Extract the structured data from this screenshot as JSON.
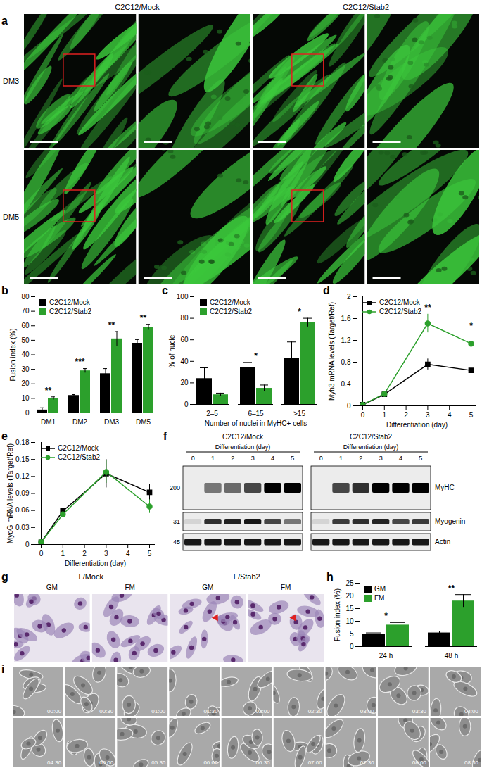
{
  "chart_data": [
    {
      "panel": "b",
      "type": "bar",
      "categories": [
        "DM1",
        "DM2",
        "DM3",
        "DM5"
      ],
      "y_label": "Fusion index (%)",
      "series": [
        {
          "name": "C2C12/Mock",
          "color": "#000000",
          "values": [
            2,
            12,
            27,
            48
          ],
          "errors": [
            1.5,
            0.6,
            3.5,
            2.5
          ]
        },
        {
          "name": "C2C12/Stab2",
          "color": "#2ca02c",
          "values": [
            10,
            29,
            51,
            59
          ],
          "errors": [
            1,
            1.5,
            5,
            2
          ]
        }
      ],
      "ylim": [
        0,
        80
      ],
      "yticks": [
        0,
        10,
        20,
        30,
        40,
        50,
        60,
        70,
        80
      ],
      "legend": "top-left",
      "annotations": [
        {
          "category": "DM1",
          "text": "**"
        },
        {
          "category": "DM2",
          "text": "***"
        },
        {
          "category": "DM3",
          "text": "**"
        },
        {
          "category": "DM5",
          "text": "**"
        }
      ]
    },
    {
      "panel": "c",
      "type": "bar",
      "categories": [
        "2–5",
        "6–15",
        ">15"
      ],
      "x_label": "Number of nuclei in MyHC+ cells",
      "y_label": "% of nuclei",
      "series": [
        {
          "name": "C2C12/Mock",
          "color": "#000000",
          "values": [
            24,
            34,
            43
          ],
          "errors": [
            10,
            5,
            15
          ]
        },
        {
          "name": "C2C12/Stab2",
          "color": "#2ca02c",
          "values": [
            9,
            15,
            76
          ],
          "errors": [
            1.5,
            3,
            4
          ]
        }
      ],
      "ylim": [
        0,
        100
      ],
      "yticks": [
        0,
        20,
        40,
        60,
        80,
        100
      ],
      "legend": "top-left",
      "annotations": [
        {
          "category": "6–15",
          "text": "*"
        },
        {
          "category": ">15",
          "text": "*"
        }
      ]
    },
    {
      "panel": "d",
      "type": "line",
      "x": [
        0,
        1,
        3,
        5
      ],
      "x_label": "Differentiation (day)",
      "y_label": "Myh3 mRNA levels (Target/Ref)",
      "series": [
        {
          "name": "C2C12/Mock",
          "color": "#000000",
          "marker": "square",
          "values": [
            0.02,
            0.21,
            0.76,
            0.65
          ],
          "errors": [
            0.005,
            0.02,
            0.1,
            0.07
          ]
        },
        {
          "name": "C2C12/Stab2",
          "color": "#2ca02c",
          "marker": "circle",
          "values": [
            0.02,
            0.22,
            1.51,
            1.14
          ],
          "errors": [
            0.005,
            0.02,
            0.17,
            0.2
          ]
        }
      ],
      "xlim": [
        0,
        5
      ],
      "xticks": [
        0,
        1,
        2,
        3,
        4,
        5
      ],
      "ylim": [
        0,
        2
      ],
      "yticks": [
        0,
        0.4,
        0.8,
        1.2,
        1.6,
        2
      ],
      "legend": "top-left",
      "annotations": [
        {
          "x": 3,
          "text": "**"
        },
        {
          "x": 5,
          "text": "*"
        }
      ]
    },
    {
      "panel": "e",
      "type": "line",
      "x": [
        0,
        1,
        3,
        5
      ],
      "x_label": "Differentiation (day)",
      "y_label": "MyoG mRNA levels (Target/Ref)",
      "series": [
        {
          "name": "C2C12/Mock",
          "color": "#000000",
          "marker": "square",
          "values": [
            0.004,
            0.059,
            0.125,
            0.092
          ],
          "errors": [
            0.001,
            0.004,
            0.025,
            0.014
          ]
        },
        {
          "name": "C2C12/Stab2",
          "color": "#2ca02c",
          "marker": "circle",
          "values": [
            0.004,
            0.053,
            0.128,
            0.067
          ],
          "errors": [
            0.001,
            0.005,
            0.02,
            0.012
          ]
        }
      ],
      "xlim": [
        0,
        5
      ],
      "xticks": [
        0,
        1,
        2,
        3,
        4,
        5
      ],
      "ylim": [
        0,
        0.18
      ],
      "yticks": [
        0,
        0.03,
        0.06,
        0.09,
        0.12,
        0.15,
        0.18
      ],
      "legend": "top-left"
    },
    {
      "panel": "h",
      "type": "bar",
      "categories": [
        "24 h",
        "48 h"
      ],
      "y_label": "Fusion index (%)",
      "series": [
        {
          "name": "GM",
          "color": "#000000",
          "values": [
            5,
            5.4
          ],
          "errors": [
            0.4,
            0.7
          ]
        },
        {
          "name": "FM",
          "color": "#2ca02c",
          "values": [
            8.5,
            18
          ],
          "errors": [
            1,
            2.5
          ]
        }
      ],
      "ylim": [
        0,
        25
      ],
      "yticks": [
        0,
        5,
        10,
        15,
        20,
        25
      ],
      "legend": "top-left",
      "annotations": [
        {
          "category": "24 h",
          "text": "*"
        },
        {
          "category": "48 h",
          "text": "**"
        }
      ]
    }
  ],
  "figure_panels": [
    {
      "panel": "a",
      "type": "micrograph",
      "columns": [
        "C2C12/Mock",
        "C2C12/Stab2"
      ],
      "rows": [
        "DM3",
        "DM5"
      ]
    },
    {
      "panel": "f",
      "type": "western_blot",
      "x_label": "Differentiation (day)",
      "lanes": [
        0,
        1,
        2,
        3,
        4,
        5
      ],
      "rows": [
        {
          "name": "MyHC",
          "marker": 200
        },
        {
          "name": "Myogenin",
          "marker": 31
        },
        {
          "name": "Actin",
          "marker": 45
        }
      ],
      "groups": [
        {
          "name": "C2C12/Mock",
          "band_intensity": {
            "MyHC": [
              0,
              0.5,
              0.55,
              0.7,
              1,
              1
            ],
            "Myogenin": [
              0.1,
              0.8,
              0.85,
              0.9,
              0.7,
              0.5
            ],
            "Actin": [
              0.9,
              0.9,
              0.9,
              0.9,
              0.9,
              0.9
            ]
          }
        },
        {
          "name": "C2C12/Stab2",
          "band_intensity": {
            "MyHC": [
              0,
              0.7,
              0.8,
              1,
              1,
              1
            ],
            "Myogenin": [
              0.1,
              0.75,
              0.8,
              0.85,
              0.7,
              0.75
            ],
            "Actin": [
              0.9,
              0.9,
              0.9,
              0.9,
              0.9,
              0.9
            ]
          }
        }
      ]
    },
    {
      "panel": "g",
      "type": "micrograph",
      "groups": [
        {
          "name": "L/Mock",
          "columns": [
            "GM",
            "FM"
          ]
        },
        {
          "name": "L/Stab2",
          "columns": [
            "GM",
            "FM"
          ]
        }
      ]
    },
    {
      "panel": "i",
      "type": "time_lapse",
      "times": [
        "00:00",
        "00:30",
        "01:00",
        "01:30",
        "02:00",
        "02:30",
        "03:00",
        "03:30",
        "04:00",
        "04:30",
        "05:00",
        "05:30",
        "06:00",
        "06:30",
        "07:00",
        "07:30",
        "08:00",
        "08:30"
      ]
    }
  ]
}
